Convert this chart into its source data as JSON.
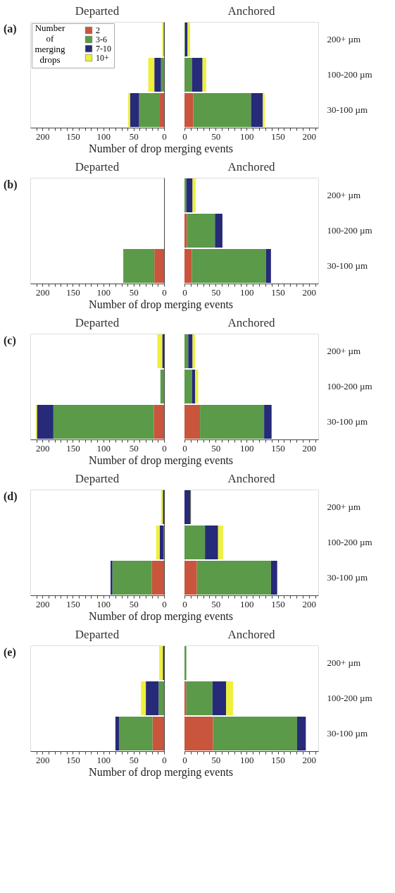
{
  "chart_data": [
    {
      "type": "bar",
      "orientation": "horizontal",
      "stacked": true,
      "title": "Departed",
      "annotations": [
        "(a)"
      ],
      "xlabel": "Number of drop merging events",
      "legend": "top left",
      "legend_title": "Number of merging drops",
      "categories": [
        null,
        null,
        null
      ],
      "xlim": [
        220,
        0
      ],
      "xticks": [
        0,
        {
          "value": 10,
          "label": null
        },
        {
          "value": 20,
          "label": null
        },
        {
          "value": 30,
          "label": null
        },
        {
          "value": 40,
          "label": null
        },
        50,
        {
          "value": 60,
          "label": null
        },
        {
          "value": 70,
          "label": null
        },
        {
          "value": 80,
          "label": null
        },
        {
          "value": 90,
          "label": null
        },
        100,
        {
          "value": 110,
          "label": null
        },
        {
          "value": 120,
          "label": null
        },
        {
          "value": 130,
          "label": null
        },
        {
          "value": 140,
          "label": null
        },
        150,
        {
          "value": 160,
          "label": null
        },
        {
          "value": 170,
          "label": null
        },
        {
          "value": 180,
          "label": null
        },
        {
          "value": 190,
          "label": null
        },
        200,
        {
          "value": 210,
          "label": null
        }
      ],
      "series": [
        {
          "name": "2",
          "color": "#c9553c",
          "values": [
            0,
            0,
            8
          ]
        },
        {
          "name": "3-6",
          "color": "#5b9a48",
          "values": [
            1,
            5,
            33
          ]
        },
        {
          "name": "7-10",
          "color": "#262a78",
          "values": [
            0,
            11,
            15
          ]
        },
        {
          "name": "10+",
          "color": "#eef03c",
          "values": [
            2,
            10,
            3
          ]
        }
      ]
    },
    {
      "type": "bar",
      "orientation": "horizontal",
      "stacked": true,
      "title": "Anchored",
      "categories": [
        "200+ µm",
        "100-200 µm",
        "30-100 µm"
      ],
      "xlim": [
        0,
        215
      ],
      "xticks": [
        0,
        {
          "value": 10,
          "label": null
        },
        {
          "value": 20,
          "label": null
        },
        {
          "value": 30,
          "label": null
        },
        {
          "value": 40,
          "label": null
        },
        50,
        {
          "value": 60,
          "label": null
        },
        {
          "value": 70,
          "label": null
        },
        {
          "value": 80,
          "label": null
        },
        {
          "value": 90,
          "label": null
        },
        100,
        {
          "value": 110,
          "label": null
        },
        {
          "value": 120,
          "label": null
        },
        {
          "value": 130,
          "label": null
        },
        {
          "value": 140,
          "label": null
        },
        150,
        {
          "value": 160,
          "label": null
        },
        {
          "value": 170,
          "label": null
        },
        {
          "value": 180,
          "label": null
        },
        {
          "value": 190,
          "label": null
        },
        200,
        {
          "value": 210,
          "label": null
        }
      ],
      "series": [
        {
          "color": "#c9553c",
          "values": [
            0,
            0,
            14
          ]
        },
        {
          "color": "#5b9a48",
          "values": [
            1,
            12,
            93
          ]
        },
        {
          "color": "#262a78",
          "values": [
            4,
            17,
            19
          ]
        },
        {
          "color": "#eef03c",
          "values": [
            4,
            6,
            3
          ]
        }
      ]
    },
    {
      "type": "bar",
      "orientation": "horizontal",
      "stacked": true,
      "title": "Departed",
      "annotations": [
        "(b)"
      ],
      "xlabel": "Number of drop merging events",
      "categories": [
        null,
        null,
        null
      ],
      "xlim": [
        220,
        0
      ],
      "xticks": [
        0,
        {
          "value": 10,
          "label": null
        },
        {
          "value": 20,
          "label": null
        },
        {
          "value": 30,
          "label": null
        },
        {
          "value": 40,
          "label": null
        },
        50,
        {
          "value": 60,
          "label": null
        },
        {
          "value": 70,
          "label": null
        },
        {
          "value": 80,
          "label": null
        },
        {
          "value": 90,
          "label": null
        },
        100,
        {
          "value": 110,
          "label": null
        },
        {
          "value": 120,
          "label": null
        },
        {
          "value": 130,
          "label": null
        },
        {
          "value": 140,
          "label": null
        },
        150,
        {
          "value": 160,
          "label": null
        },
        {
          "value": 170,
          "label": null
        },
        {
          "value": 180,
          "label": null
        },
        {
          "value": 190,
          "label": null
        },
        200,
        {
          "value": 210,
          "label": null
        }
      ],
      "series": [
        {
          "color": "#c9553c",
          "values": [
            0,
            0,
            16
          ]
        },
        {
          "color": "#5b9a48",
          "values": [
            0,
            0,
            51
          ]
        },
        {
          "color": "#262a78",
          "values": [
            0,
            0,
            0
          ]
        },
        {
          "color": "#eef03c",
          "values": [
            0,
            0,
            0
          ]
        }
      ]
    },
    {
      "type": "bar",
      "orientation": "horizontal",
      "stacked": true,
      "title": "Anchored",
      "categories": [
        "200+ µm",
        "100-200 µm",
        "30-100 µm"
      ],
      "xlim": [
        0,
        215
      ],
      "xticks": [
        0,
        {
          "value": 10,
          "label": null
        },
        {
          "value": 20,
          "label": null
        },
        {
          "value": 30,
          "label": null
        },
        {
          "value": 40,
          "label": null
        },
        50,
        {
          "value": 60,
          "label": null
        },
        {
          "value": 70,
          "label": null
        },
        {
          "value": 80,
          "label": null
        },
        {
          "value": 90,
          "label": null
        },
        100,
        {
          "value": 110,
          "label": null
        },
        {
          "value": 120,
          "label": null
        },
        {
          "value": 130,
          "label": null
        },
        {
          "value": 140,
          "label": null
        },
        150,
        {
          "value": 160,
          "label": null
        },
        {
          "value": 170,
          "label": null
        },
        {
          "value": 180,
          "label": null
        },
        {
          "value": 190,
          "label": null
        },
        200,
        {
          "value": 210,
          "label": null
        }
      ],
      "series": [
        {
          "color": "#c9553c",
          "values": [
            0,
            4,
            12
          ]
        },
        {
          "color": "#5b9a48",
          "values": [
            3,
            45,
            119
          ]
        },
        {
          "color": "#262a78",
          "values": [
            10,
            12,
            8
          ]
        },
        {
          "color": "#eef03c",
          "values": [
            5,
            0,
            0
          ]
        }
      ]
    },
    {
      "type": "bar",
      "orientation": "horizontal",
      "stacked": true,
      "title": "Departed",
      "annotations": [
        "(c)"
      ],
      "xlabel": "Number of drop merging events",
      "categories": [
        null,
        null,
        null
      ],
      "xlim": [
        220,
        0
      ],
      "xticks": [
        0,
        {
          "value": 10,
          "label": null
        },
        {
          "value": 20,
          "label": null
        },
        {
          "value": 30,
          "label": null
        },
        {
          "value": 40,
          "label": null
        },
        50,
        {
          "value": 60,
          "label": null
        },
        {
          "value": 70,
          "label": null
        },
        {
          "value": 80,
          "label": null
        },
        {
          "value": 90,
          "label": null
        },
        100,
        {
          "value": 110,
          "label": null
        },
        {
          "value": 120,
          "label": null
        },
        {
          "value": 130,
          "label": null
        },
        {
          "value": 140,
          "label": null
        },
        150,
        {
          "value": 160,
          "label": null
        },
        {
          "value": 170,
          "label": null
        },
        {
          "value": 180,
          "label": null
        },
        {
          "value": 190,
          "label": null
        },
        200,
        {
          "value": 210,
          "label": null
        }
      ],
      "series": [
        {
          "color": "#c9553c",
          "values": [
            0,
            0,
            17
          ]
        },
        {
          "color": "#5b9a48",
          "values": [
            0,
            6,
            165
          ]
        },
        {
          "color": "#262a78",
          "values": [
            3,
            0,
            27
          ]
        },
        {
          "color": "#eef03c",
          "values": [
            8,
            0,
            2
          ]
        }
      ]
    },
    {
      "type": "bar",
      "orientation": "horizontal",
      "stacked": true,
      "title": "Anchored",
      "categories": [
        "200+ µm",
        "100-200 µm",
        "30-100 µm"
      ],
      "xlim": [
        0,
        215
      ],
      "xticks": [
        0,
        {
          "value": 10,
          "label": null
        },
        {
          "value": 20,
          "label": null
        },
        {
          "value": 30,
          "label": null
        },
        {
          "value": 40,
          "label": null
        },
        50,
        {
          "value": 60,
          "label": null
        },
        {
          "value": 70,
          "label": null
        },
        {
          "value": 80,
          "label": null
        },
        {
          "value": 90,
          "label": null
        },
        100,
        {
          "value": 110,
          "label": null
        },
        {
          "value": 120,
          "label": null
        },
        {
          "value": 130,
          "label": null
        },
        {
          "value": 140,
          "label": null
        },
        150,
        {
          "value": 160,
          "label": null
        },
        {
          "value": 170,
          "label": null
        },
        {
          "value": 180,
          "label": null
        },
        {
          "value": 190,
          "label": null
        },
        200,
        {
          "value": 210,
          "label": null
        }
      ],
      "series": [
        {
          "color": "#c9553c",
          "values": [
            0,
            0,
            25
          ]
        },
        {
          "color": "#5b9a48",
          "values": [
            6,
            12,
            103
          ]
        },
        {
          "color": "#262a78",
          "values": [
            7,
            5,
            12
          ]
        },
        {
          "color": "#eef03c",
          "values": [
            4,
            5,
            0
          ]
        }
      ]
    },
    {
      "type": "bar",
      "orientation": "horizontal",
      "stacked": true,
      "title": "Departed",
      "annotations": [
        "(d)"
      ],
      "xlabel": "Number of drop merging events",
      "categories": [
        null,
        null,
        null
      ],
      "xlim": [
        220,
        0
      ],
      "xticks": [
        0,
        {
          "value": 10,
          "label": null
        },
        {
          "value": 20,
          "label": null
        },
        {
          "value": 30,
          "label": null
        },
        {
          "value": 40,
          "label": null
        },
        50,
        {
          "value": 60,
          "label": null
        },
        {
          "value": 70,
          "label": null
        },
        {
          "value": 80,
          "label": null
        },
        {
          "value": 90,
          "label": null
        },
        100,
        {
          "value": 110,
          "label": null
        },
        {
          "value": 120,
          "label": null
        },
        {
          "value": 130,
          "label": null
        },
        {
          "value": 140,
          "label": null
        },
        150,
        {
          "value": 160,
          "label": null
        },
        {
          "value": 170,
          "label": null
        },
        {
          "value": 180,
          "label": null
        },
        {
          "value": 190,
          "label": null
        },
        200,
        {
          "value": 210,
          "label": null
        }
      ],
      "series": [
        {
          "color": "#c9553c",
          "values": [
            0,
            0,
            20
          ]
        },
        {
          "color": "#5b9a48",
          "values": [
            0,
            1,
            65
          ]
        },
        {
          "color": "#262a78",
          "values": [
            2,
            6,
            3
          ]
        },
        {
          "color": "#eef03c",
          "values": [
            3,
            6,
            0
          ]
        }
      ]
    },
    {
      "type": "bar",
      "orientation": "horizontal",
      "stacked": true,
      "title": "Anchored",
      "categories": [
        "200+ µm",
        "100-200 µm",
        "30-100 µm"
      ],
      "xlim": [
        0,
        215
      ],
      "xticks": [
        0,
        {
          "value": 10,
          "label": null
        },
        {
          "value": 20,
          "label": null
        },
        {
          "value": 30,
          "label": null
        },
        {
          "value": 40,
          "label": null
        },
        50,
        {
          "value": 60,
          "label": null
        },
        {
          "value": 70,
          "label": null
        },
        {
          "value": 80,
          "label": null
        },
        {
          "value": 90,
          "label": null
        },
        100,
        {
          "value": 110,
          "label": null
        },
        {
          "value": 120,
          "label": null
        },
        {
          "value": 130,
          "label": null
        },
        {
          "value": 140,
          "label": null
        },
        150,
        {
          "value": 160,
          "label": null
        },
        {
          "value": 170,
          "label": null
        },
        {
          "value": 180,
          "label": null
        },
        {
          "value": 190,
          "label": null
        },
        200,
        {
          "value": 210,
          "label": null
        }
      ],
      "series": [
        {
          "color": "#c9553c",
          "values": [
            0,
            0,
            20
          ]
        },
        {
          "color": "#5b9a48",
          "values": [
            0,
            33,
            119
          ]
        },
        {
          "color": "#262a78",
          "values": [
            10,
            21,
            10
          ]
        },
        {
          "color": "#eef03c",
          "values": [
            1,
            8,
            0
          ]
        }
      ]
    },
    {
      "type": "bar",
      "orientation": "horizontal",
      "stacked": true,
      "title": "Departed",
      "annotations": [
        "(e)"
      ],
      "xlabel": "Number of drop merging events",
      "categories": [
        null,
        null,
        null
      ],
      "xlim": [
        220,
        0
      ],
      "xticks": [
        0,
        {
          "value": 10,
          "label": null
        },
        {
          "value": 20,
          "label": null
        },
        {
          "value": 30,
          "label": null
        },
        {
          "value": 40,
          "label": null
        },
        50,
        {
          "value": 60,
          "label": null
        },
        {
          "value": 70,
          "label": null
        },
        {
          "value": 80,
          "label": null
        },
        {
          "value": 90,
          "label": null
        },
        100,
        {
          "value": 110,
          "label": null
        },
        {
          "value": 120,
          "label": null
        },
        {
          "value": 130,
          "label": null
        },
        {
          "value": 140,
          "label": null
        },
        150,
        {
          "value": 160,
          "label": null
        },
        {
          "value": 170,
          "label": null
        },
        {
          "value": 180,
          "label": null
        },
        {
          "value": 190,
          "label": null
        },
        200,
        {
          "value": 210,
          "label": null
        }
      ],
      "series": [
        {
          "color": "#c9553c",
          "values": [
            0,
            0,
            19
          ]
        },
        {
          "color": "#5b9a48",
          "values": [
            0,
            9,
            55
          ]
        },
        {
          "color": "#262a78",
          "values": [
            2,
            21,
            6
          ]
        },
        {
          "color": "#eef03c",
          "values": [
            6,
            8,
            0
          ]
        }
      ]
    },
    {
      "type": "bar",
      "orientation": "horizontal",
      "stacked": true,
      "title": "Anchored",
      "categories": [
        "200+ µm",
        "100-200 µm",
        "30-100 µm"
      ],
      "xlim": [
        0,
        215
      ],
      "xticks": [
        0,
        {
          "value": 10,
          "label": null
        },
        {
          "value": 20,
          "label": null
        },
        {
          "value": 30,
          "label": null
        },
        {
          "value": 40,
          "label": null
        },
        50,
        {
          "value": 60,
          "label": null
        },
        {
          "value": 70,
          "label": null
        },
        {
          "value": 80,
          "label": null
        },
        {
          "value": 90,
          "label": null
        },
        100,
        {
          "value": 110,
          "label": null
        },
        {
          "value": 120,
          "label": null
        },
        {
          "value": 130,
          "label": null
        },
        {
          "value": 140,
          "label": null
        },
        150,
        {
          "value": 160,
          "label": null
        },
        {
          "value": 170,
          "label": null
        },
        {
          "value": 180,
          "label": null
        },
        {
          "value": 190,
          "label": null
        },
        200,
        {
          "value": 210,
          "label": null
        }
      ],
      "series": [
        {
          "color": "#c9553c",
          "values": [
            0,
            3,
            46
          ]
        },
        {
          "color": "#5b9a48",
          "values": [
            3,
            42,
            135
          ]
        },
        {
          "color": "#262a78",
          "values": [
            0,
            22,
            14
          ]
        },
        {
          "color": "#eef03c",
          "values": [
            0,
            11,
            0
          ]
        }
      ]
    }
  ]
}
